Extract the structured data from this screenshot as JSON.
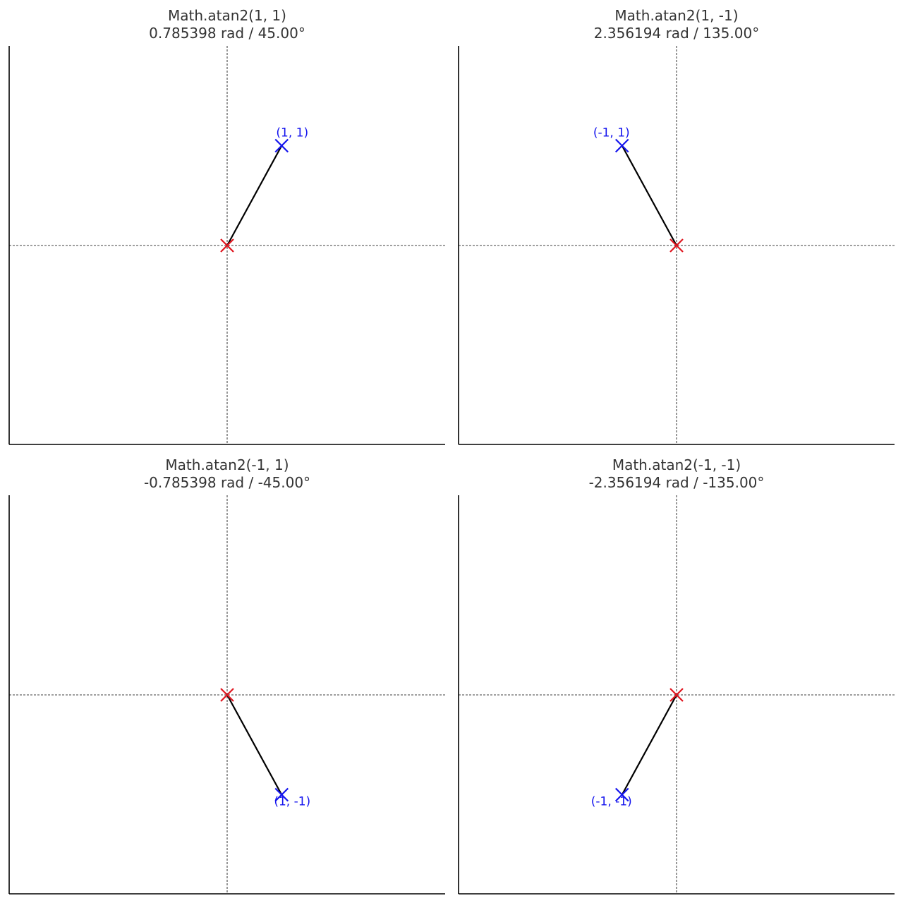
{
  "colors": {
    "axis": "#000000",
    "crosshair": "#000000",
    "vector": "#000000",
    "origin_marker": "#e0141e",
    "point_marker": "#1414ee",
    "title_text": "#333333",
    "point_label_text": "#1414ee"
  },
  "chart_data": [
    {
      "type": "line",
      "title": "Math.atan2(1, 1)",
      "subtitle": "0.785398 rad / 45.00°",
      "origin": [
        0,
        0
      ],
      "point": {
        "x": 1,
        "y": 1,
        "label": "(1, 1)"
      },
      "xlim": [
        -2,
        2
      ],
      "ylim": [
        -2,
        2
      ],
      "grid": false,
      "crosshair_at_zero": true
    },
    {
      "type": "line",
      "title": "Math.atan2(1, -1)",
      "subtitle": "2.356194 rad / 135.00°",
      "origin": [
        0,
        0
      ],
      "point": {
        "x": -1,
        "y": 1,
        "label": "(-1, 1)"
      },
      "xlim": [
        -2,
        2
      ],
      "ylim": [
        -2,
        2
      ],
      "grid": false,
      "crosshair_at_zero": true
    },
    {
      "type": "line",
      "title": "Math.atan2(-1, 1)",
      "subtitle": "-0.785398 rad / -45.00°",
      "origin": [
        0,
        0
      ],
      "point": {
        "x": 1,
        "y": -1,
        "label": "(1, -1)"
      },
      "xlim": [
        -2,
        2
      ],
      "ylim": [
        -2,
        2
      ],
      "grid": false,
      "crosshair_at_zero": true
    },
    {
      "type": "line",
      "title": "Math.atan2(-1, -1)",
      "subtitle": "-2.356194 rad / -135.00°",
      "origin": [
        0,
        0
      ],
      "point": {
        "x": -1,
        "y": -1,
        "label": "(-1, -1)"
      },
      "xlim": [
        -2,
        2
      ],
      "ylim": [
        -2,
        2
      ],
      "grid": false,
      "crosshair_at_zero": true
    }
  ]
}
